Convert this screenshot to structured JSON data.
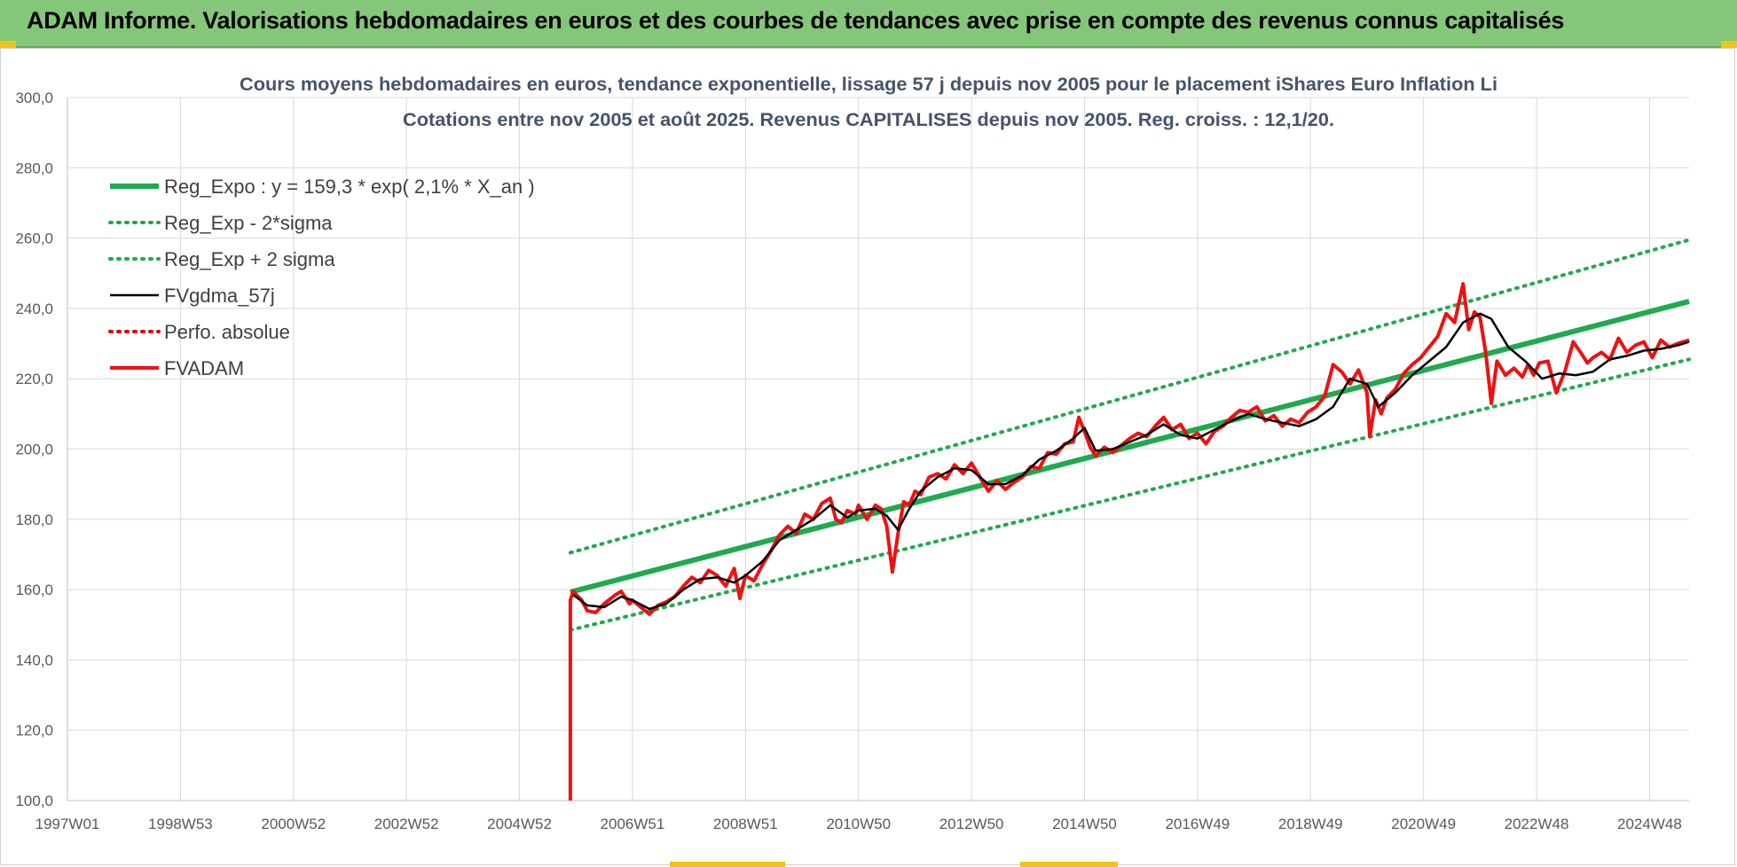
{
  "banner": {
    "title": "ADAM Informe. Valorisations hebdomadaires en euros et des courbes de tendances avec prise en compte des revenus connus capitalisés"
  },
  "colors": {
    "banner_bg": "#85c77a",
    "regression": "#1faa4f",
    "sigma_bands": "#1faa4f",
    "smoothed": "#000000",
    "perf_absolue": "#e00000",
    "fvadam": "#ee1111",
    "grid": "#d9d9d9"
  },
  "chart_data": {
    "type": "line",
    "title": "Cours moyens hebdomadaires en euros, tendance exponentielle, lissage 57 j depuis nov 2005 pour le placement iShares Euro Inflation Li",
    "subtitle": "Cotations entre nov 2005 et août 2025. Revenus CAPITALISES depuis nov 2005. Reg. croiss. : 12,1/20.",
    "xlim": [
      1997.0,
      2025.7
    ],
    "ylim": [
      100,
      300
    ],
    "ytick_values": [
      100,
      120,
      140,
      160,
      180,
      200,
      220,
      240,
      260,
      280,
      300
    ],
    "ytick_labels": [
      "100,0",
      "120,0",
      "140,0",
      "160,0",
      "180,0",
      "200,0",
      "220,0",
      "240,0",
      "260,0",
      "280,0",
      "300,0"
    ],
    "xticks": [
      {
        "label": "1997W01",
        "x": 1997.0
      },
      {
        "label": "1998W53",
        "x": 1999.0
      },
      {
        "label": "2000W52",
        "x": 2001.0
      },
      {
        "label": "2002W52",
        "x": 2003.0
      },
      {
        "label": "2004W52",
        "x": 2005.0
      },
      {
        "label": "2006W51",
        "x": 2007.0
      },
      {
        "label": "2008W51",
        "x": 2009.0
      },
      {
        "label": "2010W50",
        "x": 2011.0
      },
      {
        "label": "2012W50",
        "x": 2013.0
      },
      {
        "label": "2014W50",
        "x": 2015.0
      },
      {
        "label": "2016W49",
        "x": 2017.0
      },
      {
        "label": "2018W49",
        "x": 2019.0
      },
      {
        "label": "2020W49",
        "x": 2021.0
      },
      {
        "label": "2022W48",
        "x": 2023.0
      },
      {
        "label": "2024W48",
        "x": 2025.0
      }
    ],
    "grid": true,
    "legend_position": "top-left",
    "series": [
      {
        "name": "Reg_Expo : y = 159,3 * exp( 2,1% *  X_an )",
        "style": "solid-thick",
        "color": "#1faa4f",
        "x": [
          2005.9,
          2025.7
        ],
        "y": [
          159.3,
          242.0
        ]
      },
      {
        "name": "Reg_Exp - 2*sigma",
        "style": "dotted",
        "color": "#1faa4f",
        "x": [
          2005.9,
          2025.7
        ],
        "y": [
          148.5,
          225.5
        ]
      },
      {
        "name": "Reg_Exp + 2 sigma",
        "style": "dotted",
        "color": "#1faa4f",
        "x": [
          2005.9,
          2025.7
        ],
        "y": [
          170.5,
          259.5
        ]
      },
      {
        "name": "FVgdma_57j",
        "style": "solid",
        "color": "#000000",
        "x": [
          2005.95,
          2006.2,
          2006.5,
          2006.8,
          2007.0,
          2007.3,
          2007.6,
          2007.9,
          2008.2,
          2008.5,
          2008.8,
          2009.0,
          2009.3,
          2009.6,
          2009.9,
          2010.2,
          2010.5,
          2010.8,
          2011.0,
          2011.3,
          2011.5,
          2011.7,
          2011.9,
          2012.1,
          2012.4,
          2012.7,
          2013.0,
          2013.3,
          2013.6,
          2013.9,
          2014.2,
          2014.5,
          2014.8,
          2015.0,
          2015.2,
          2015.5,
          2015.8,
          2016.1,
          2016.4,
          2016.7,
          2017.0,
          2017.3,
          2017.6,
          2017.9,
          2018.2,
          2018.5,
          2018.8,
          2019.1,
          2019.4,
          2019.7,
          2020.0,
          2020.2,
          2020.5,
          2020.8,
          2021.1,
          2021.4,
          2021.7,
          2022.0,
          2022.2,
          2022.5,
          2022.8,
          2023.1,
          2023.4,
          2023.7,
          2024.0,
          2024.3,
          2024.6,
          2024.9,
          2025.2,
          2025.5,
          2025.7
        ],
        "y": [
          158.5,
          155.5,
          155.0,
          158.0,
          157.0,
          154.5,
          156.0,
          160.0,
          163.0,
          163.5,
          162.0,
          164.0,
          168.0,
          174.0,
          177.0,
          180.0,
          184.0,
          180.5,
          182.5,
          183.0,
          181.0,
          177.0,
          183.0,
          188.0,
          192.0,
          194.5,
          194.0,
          190.0,
          190.0,
          192.5,
          197.0,
          199.5,
          203.0,
          206.0,
          199.5,
          200.0,
          202.0,
          204.0,
          207.0,
          204.0,
          203.0,
          205.5,
          208.0,
          210.0,
          208.5,
          207.5,
          206.5,
          208.5,
          212.0,
          220.0,
          218.5,
          212.0,
          216.0,
          221.0,
          225.0,
          229.0,
          236.0,
          238.5,
          237.0,
          229.0,
          225.0,
          220.0,
          221.5,
          221.0,
          222.0,
          225.5,
          226.5,
          228.0,
          228.5,
          229.5,
          230.5
        ]
      },
      {
        "name": "Perfo. absolue",
        "style": "dotted",
        "color": "#e00000",
        "x": [],
        "y": []
      },
      {
        "name": "FVADAM",
        "style": "solid-thick",
        "color": "#ee1111",
        "x": [
          2005.9,
          2005.9,
          2005.95,
          2006.1,
          2006.2,
          2006.35,
          2006.5,
          2006.7,
          2006.8,
          2006.95,
          2007.0,
          2007.15,
          2007.3,
          2007.45,
          2007.6,
          2007.75,
          2007.9,
          2008.05,
          2008.2,
          2008.35,
          2008.5,
          2008.65,
          2008.8,
          2008.9,
          2009.0,
          2009.15,
          2009.3,
          2009.45,
          2009.6,
          2009.75,
          2009.9,
          2010.05,
          2010.2,
          2010.35,
          2010.5,
          2010.6,
          2010.7,
          2010.8,
          2010.95,
          2011.0,
          2011.15,
          2011.3,
          2011.4,
          2011.5,
          2011.6,
          2011.7,
          2011.8,
          2011.9,
          2012.0,
          2012.1,
          2012.25,
          2012.4,
          2012.55,
          2012.7,
          2012.85,
          2013.0,
          2013.15,
          2013.3,
          2013.45,
          2013.6,
          2013.75,
          2013.9,
          2014.05,
          2014.2,
          2014.35,
          2014.5,
          2014.65,
          2014.8,
          2014.9,
          2015.0,
          2015.1,
          2015.2,
          2015.35,
          2015.5,
          2015.65,
          2015.8,
          2015.95,
          2016.1,
          2016.25,
          2016.4,
          2016.55,
          2016.7,
          2016.85,
          2017.0,
          2017.15,
          2017.3,
          2017.45,
          2017.6,
          2017.75,
          2017.9,
          2018.05,
          2018.2,
          2018.35,
          2018.5,
          2018.65,
          2018.8,
          2018.95,
          2019.1,
          2019.25,
          2019.4,
          2019.55,
          2019.7,
          2019.85,
          2020.0,
          2020.05,
          2020.15,
          2020.25,
          2020.35,
          2020.5,
          2020.65,
          2020.8,
          2020.95,
          2021.1,
          2021.25,
          2021.4,
          2021.55,
          2021.7,
          2021.8,
          2021.9,
          2022.0,
          2022.1,
          2022.2,
          2022.3,
          2022.45,
          2022.6,
          2022.75,
          2022.85,
          2022.95,
          2023.05,
          2023.2,
          2023.35,
          2023.5,
          2023.65,
          2023.8,
          2023.9,
          2024.0,
          2024.15,
          2024.3,
          2024.45,
          2024.6,
          2024.75,
          2024.9,
          2025.05,
          2025.2,
          2025.35,
          2025.5,
          2025.7
        ],
        "y": [
          100.0,
          157.0,
          159.5,
          157.0,
          154.0,
          153.5,
          156.0,
          158.5,
          159.5,
          156.0,
          157.0,
          155.0,
          153.0,
          155.5,
          156.5,
          158.0,
          161.0,
          163.5,
          162.0,
          165.5,
          164.0,
          161.0,
          166.0,
          157.5,
          164.0,
          162.5,
          167.0,
          171.0,
          175.5,
          178.0,
          176.0,
          181.5,
          180.0,
          184.5,
          186.0,
          180.0,
          179.0,
          182.5,
          181.5,
          184.0,
          180.0,
          184.0,
          183.0,
          178.0,
          165.0,
          176.0,
          185.0,
          184.0,
          188.0,
          187.0,
          192.0,
          193.0,
          191.5,
          195.5,
          193.0,
          196.0,
          192.0,
          188.0,
          191.0,
          188.5,
          190.5,
          192.0,
          195.0,
          194.5,
          199.0,
          198.5,
          201.5,
          202.0,
          209.0,
          205.0,
          200.5,
          198.0,
          200.5,
          199.0,
          201.0,
          203.0,
          204.5,
          203.5,
          206.5,
          209.0,
          205.5,
          207.0,
          203.0,
          204.5,
          201.5,
          205.0,
          206.5,
          209.0,
          211.0,
          210.5,
          212.0,
          208.0,
          209.5,
          206.5,
          208.5,
          207.5,
          210.5,
          212.0,
          215.0,
          224.0,
          222.0,
          218.5,
          222.5,
          216.0,
          203.5,
          214.0,
          210.0,
          214.5,
          217.0,
          221.5,
          224.0,
          226.0,
          229.0,
          232.0,
          238.5,
          236.0,
          247.0,
          234.0,
          239.0,
          237.5,
          227.5,
          213.0,
          225.0,
          221.0,
          223.0,
          220.5,
          224.0,
          221.0,
          224.5,
          225.0,
          216.0,
          222.0,
          230.5,
          227.0,
          224.5,
          226.0,
          227.5,
          225.5,
          231.5,
          227.5,
          229.5,
          230.5,
          226.0,
          231.0,
          229.0,
          230.0,
          231.0
        ]
      }
    ]
  }
}
